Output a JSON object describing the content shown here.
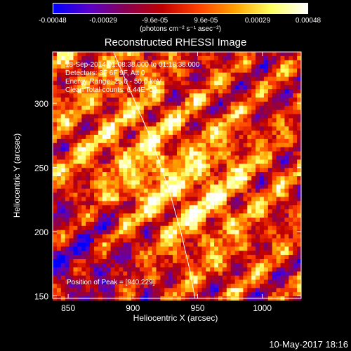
{
  "chart_data": {
    "type": "heatmap",
    "title": "Reconstructed RHESSI Image",
    "xlabel": "Heliocentric X (arcsec)",
    "ylabel": "Heliocentric Y (arcsec)",
    "xlim": [
      838,
      1030
    ],
    "ylim": [
      148,
      340
    ],
    "x_ticks": [
      850,
      900,
      950,
      1000
    ],
    "y_ticks": [
      150,
      200,
      250,
      300
    ],
    "colorbar": {
      "ticks": [
        "-0.00048",
        "-0.00029",
        "-9.6e-05",
        "9.6e-05",
        "0.00029",
        "0.00048"
      ],
      "tick_values": [
        -0.00048,
        -0.00029,
        -9.6e-05,
        9.6e-05,
        0.00029,
        0.00048
      ],
      "range": [
        -0.00048,
        0.00048
      ],
      "unit": "(photons cm⁻² s⁻¹ asec⁻²)",
      "colors": [
        "#0000ff",
        "#5a00c8",
        "#8a0050",
        "#c00000",
        "#ff4000",
        "#ffa000",
        "#ffff60",
        "#ffffff"
      ]
    },
    "annotations": [
      "18-Sep-2014 01:08:38.000 to 01:18:38.000",
      "Detectors: 3F 6F 9F, Att 0",
      "Energy Range: 25.0 - 50.0 keV",
      "Clean    Total counts: 6.44E+03"
    ],
    "peak_label": "Position of Peak = [940,229]",
    "peak": [
      940,
      229
    ],
    "limb_curve": [
      [
        885,
        340
      ],
      [
        900,
        305
      ],
      [
        915,
        270
      ],
      [
        928,
        232
      ],
      [
        937,
        200
      ],
      [
        944,
        170
      ],
      [
        948,
        148
      ]
    ]
  },
  "timestamp": "10-May-2017 18:16"
}
